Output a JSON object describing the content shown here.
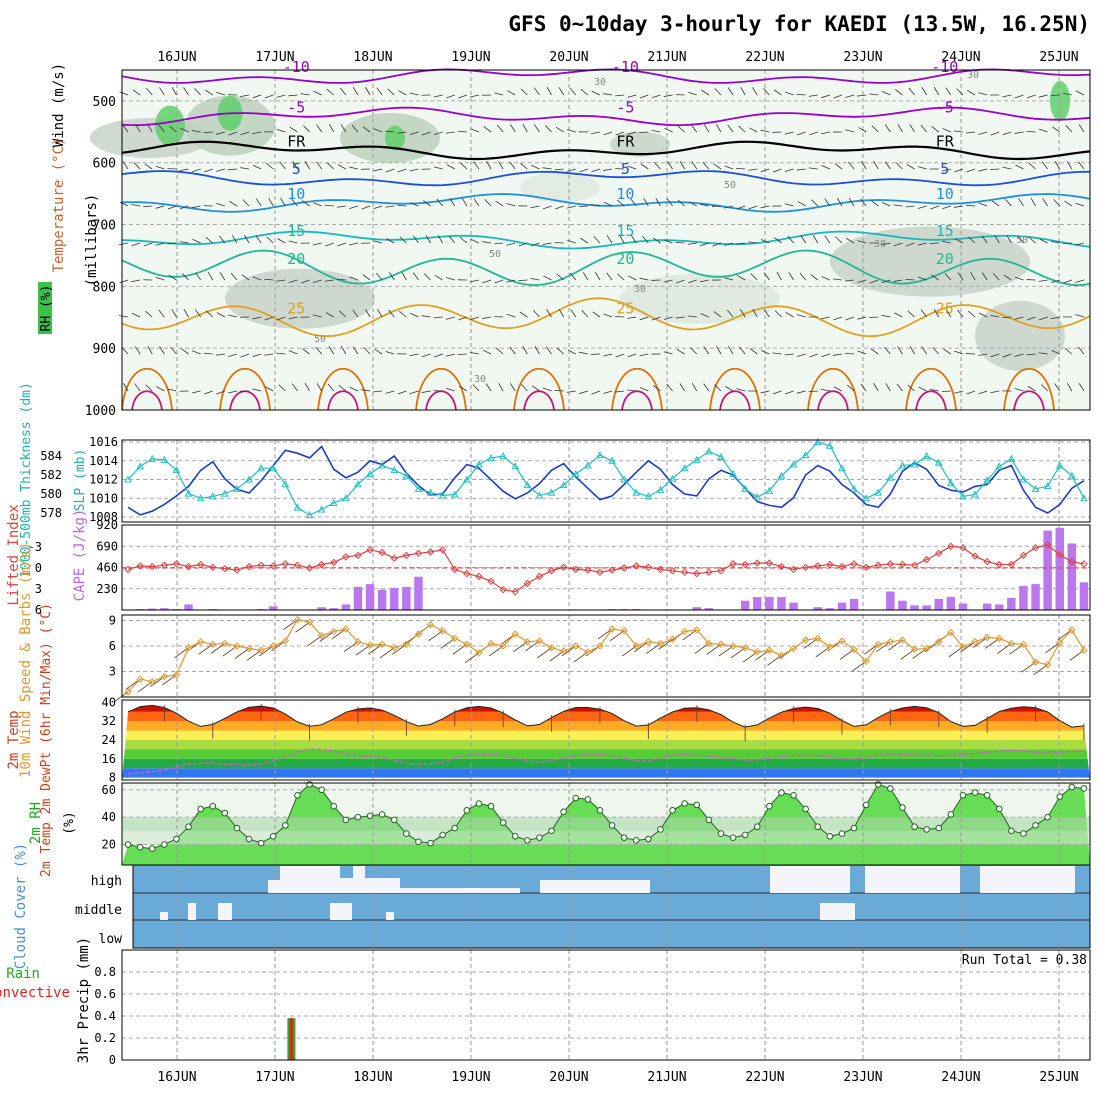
{
  "chart_data": {
    "type": "meteogram",
    "title": "GFS 0~10day 3-hourly for KAEDI (13.5W, 16.25N)",
    "date_labels": [
      "16JUN",
      "17JUN",
      "18JUN",
      "19JUN",
      "20JUN",
      "21JUN",
      "22JUN",
      "23JUN",
      "24JUN",
      "25JUN"
    ],
    "panels": [
      {
        "id": "upper-air",
        "type": "contour",
        "ylabel": "(millibars)",
        "side_labels": [
          "Wind (m/s)",
          "Temperature (°C)",
          "RH (%)"
        ],
        "y_ticks": [
          "500",
          "600",
          "700",
          "800",
          "900",
          "1000"
        ],
        "ylim": [
          1000,
          450
        ],
        "temperature_contours": [
          {
            "label": "-10",
            "pressure": 460,
            "color": "#9900cc"
          },
          {
            "label": "-5",
            "pressure": 525,
            "color": "#9900cc"
          },
          {
            "label": "FR",
            "pressure": 580,
            "color": "#000000"
          },
          {
            "label": "5",
            "pressure": 625,
            "color": "#1a4fd6"
          },
          {
            "label": "10",
            "pressure": 665,
            "color": "#1e90e0"
          },
          {
            "label": "15",
            "pressure": 725,
            "color": "#1ab8b8"
          },
          {
            "label": "20",
            "pressure": 770,
            "color": "#20b890"
          },
          {
            "label": "25",
            "pressure": 850,
            "color": "#e0a020"
          }
        ],
        "rh_contour_labels": [
          "30",
          "50"
        ]
      },
      {
        "id": "slp-thickness",
        "type": "line",
        "ylabel_left": "1000-500mb Thickness (dm)",
        "ylabel_right": "SLP (mb)",
        "left_ticks": [
          "584",
          "582",
          "580",
          "578"
        ],
        "right_ticks": [
          "1016",
          "1014",
          "1012",
          "1010",
          "1008"
        ],
        "series": [
          {
            "name": "Thickness",
            "color": "#1a3ccc",
            "values": [
              578.6,
              577.8,
              578.2,
              578.9,
              579.8,
              580.8,
              582.5,
              583.4,
              581.6,
              580.5,
              580.1,
              581.4,
              583.0,
              584.6,
              584.3,
              583.8,
              585.0,
              582.6,
              581.7,
              582.3,
              583.5,
              583.1,
              584.0,
              582.2,
              580.9,
              579.9,
              580.0,
              581.7,
              583.1,
              582.7,
              581.5,
              580.3,
              579.5,
              580.1,
              581.1,
              582.5,
              583.2,
              581.8,
              580.6,
              579.4,
              579.8,
              581.0,
              582.3,
              583.5,
              582.6,
              581.0,
              580.0,
              579.8,
              581.6,
              582.5,
              582.0,
              580.6,
              579.2,
              578.8,
              578.6,
              579.6,
              582.0,
              583.0,
              582.4,
              581.0,
              580.1,
              578.9,
              578.6,
              580.0,
              582.4,
              583.3,
              582.6,
              580.9,
              580.4,
              580.2,
              580.8,
              581.0,
              582.5,
              583.0,
              580.4,
              578.6,
              578.0,
              578.9,
              580.6,
              581.4
            ]
          },
          {
            "name": "SLP",
            "color": "#20c0c0",
            "values": [
              1012.0,
              1013.4,
              1014.2,
              1014.1,
              1013.0,
              1010.5,
              1010.0,
              1010.2,
              1010.5,
              1011.0,
              1012.0,
              1013.2,
              1013.2,
              1011.5,
              1009.0,
              1008.2,
              1008.8,
              1009.5,
              1010.0,
              1011.5,
              1012.6,
              1013.5,
              1013.0,
              1012.4,
              1011.0,
              1010.6,
              1010.3,
              1010.4,
              1012.0,
              1013.6,
              1014.3,
              1014.5,
              1013.4,
              1011.4,
              1010.3,
              1010.6,
              1011.4,
              1012.6,
              1013.5,
              1014.6,
              1014.0,
              1012.0,
              1010.6,
              1010.2,
              1010.9,
              1012.1,
              1013.2,
              1014.1,
              1015.0,
              1014.4,
              1012.6,
              1011.0,
              1010.1,
              1010.8,
              1012.4,
              1013.6,
              1014.6,
              1016.0,
              1015.6,
              1013.2,
              1011.0,
              1010.0,
              1010.6,
              1012.2,
              1013.5,
              1013.6,
              1014.5,
              1013.8,
              1011.6,
              1010.2,
              1010.4,
              1011.9,
              1013.4,
              1014.2,
              1012.0,
              1011.0,
              1011.3,
              1013.5,
              1012.4,
              1010.0
            ]
          }
        ]
      },
      {
        "id": "li-cape",
        "type": "line+bar",
        "ylabel_left": "Lifted Index",
        "ylabel_right": "CAPE (J/kg)",
        "left_ticks": [
          "-3",
          "0",
          "3",
          "6"
        ],
        "right_ticks": [
          "920",
          "690",
          "460",
          "230"
        ],
        "series": [
          {
            "name": "Lifted Index",
            "color": "#e04040",
            "values": [
              0.2,
              -0.3,
              -0.2,
              -0.4,
              -0.6,
              -0.2,
              -0.5,
              -0.1,
              0.1,
              0.3,
              -0.2,
              -0.4,
              -0.3,
              -0.6,
              -0.4,
              0.0,
              -0.5,
              -0.8,
              -1.6,
              -1.8,
              -2.6,
              -2.2,
              -1.4,
              -1.8,
              -2.1,
              -2.3,
              -2.6,
              0.2,
              0.8,
              1.2,
              1.9,
              3.1,
              3.4,
              2.2,
              1.2,
              0.4,
              -0.1,
              0.2,
              0.3,
              0.6,
              0.3,
              0.0,
              -0.3,
              -0.1,
              0.2,
              0.4,
              0.6,
              0.8,
              0.6,
              0.4,
              -0.6,
              -0.5,
              -0.7,
              -0.7,
              -0.2,
              0.2,
              -0.1,
              -0.3,
              -0.5,
              -0.2,
              -0.6,
              -0.1,
              -0.4,
              -0.6,
              -0.5,
              -0.4,
              -1.2,
              -2.1,
              -3.1,
              -2.9,
              -1.7,
              -0.9,
              -0.5,
              -0.5,
              -1.8,
              -2.9,
              -3.3,
              -1.9,
              -0.9,
              -0.6
            ]
          },
          {
            "name": "CAPE",
            "color": "#bb77ee",
            "values": [
              5,
              10,
              15,
              20,
              10,
              60,
              0,
              10,
              0,
              0,
              0,
              10,
              40,
              0,
              0,
              0,
              30,
              20,
              60,
              250,
              280,
              220,
              240,
              250,
              360,
              0,
              0,
              0,
              0,
              0,
              0,
              0,
              0,
              0,
              0,
              0,
              0,
              0,
              0,
              0,
              10,
              10,
              10,
              0,
              0,
              0,
              0,
              30,
              20,
              0,
              0,
              100,
              140,
              140,
              140,
              80,
              0,
              30,
              20,
              80,
              120,
              0,
              0,
              200,
              100,
              50,
              50,
              120,
              140,
              70,
              0,
              70,
              60,
              130,
              260,
              280,
              860,
              890,
              720,
              300
            ]
          }
        ]
      },
      {
        "id": "wind10m",
        "type": "line",
        "ylabel": "10m Wind Speed & Barbs (m/s)",
        "left_ticks": [
          "9",
          "6",
          "3"
        ],
        "series": [
          {
            "name": "Speed",
            "color": "#e09a30",
            "values": [
              0.6,
              2.1,
              1.8,
              2.4,
              2.6,
              5.8,
              6.5,
              6.2,
              6.3,
              6.0,
              5.7,
              5.5,
              6.0,
              6.6,
              9.1,
              8.8,
              7.2,
              7.7,
              8.0,
              6.5,
              6.1,
              6.2,
              5.8,
              6.2,
              7.4,
              8.5,
              7.8,
              6.9,
              6.2,
              5.2,
              6.3,
              6.0,
              7.4,
              6.5,
              6.6,
              5.8,
              5.4,
              6.0,
              5.3,
              6.0,
              8.0,
              7.8,
              6.0,
              6.5,
              6.3,
              6.8,
              7.7,
              7.9,
              6.3,
              6.2,
              6.0,
              5.8,
              5.3,
              5.5,
              4.9,
              5.7,
              6.7,
              6.9,
              5.9,
              6.6,
              5.6,
              4.2,
              6.2,
              6.5,
              6.7,
              5.6,
              5.7,
              6.5,
              7.6,
              5.9,
              6.5,
              7.0,
              6.9,
              6.3,
              6.2,
              4.1,
              3.8,
              6.4,
              7.9,
              5.5
            ]
          }
        ]
      },
      {
        "id": "temp2m",
        "type": "area",
        "ylabel": "2m Temp 2m DewPt (6hr Min/Max) (°C)",
        "left_ticks": [
          "40",
          "32",
          "24",
          "16",
          "8"
        ],
        "series": [
          {
            "name": "2m Temp",
            "color": "#c00000",
            "values": [
              36.0,
              38.2,
              38.7,
              37.8,
              35.4,
              32.0,
              29.8,
              30.6,
              33.2,
              35.9,
              37.9,
              38.4,
              37.6,
              35.0,
              31.7,
              29.8,
              30.5,
              33.0,
              35.8,
              37.2,
              37.6,
              36.7,
              34.5,
              31.8,
              29.9,
              30.6,
              33.0,
              35.9,
              37.7,
              38.3,
              37.6,
              35.5,
              32.5,
              30.0,
              30.6,
              33.5,
              36.2,
              37.8,
              37.8,
              37.1,
              35.3,
              32.2,
              29.9,
              30.4,
              33.3,
              35.9,
              37.5,
              37.7,
              36.8,
              34.8,
              31.6,
              29.5,
              30.4,
              33.3,
              35.8,
              37.4,
              38.0,
              37.4,
              35.4,
              32.3,
              29.8,
              30.4,
              33.6,
              36.2,
              37.6,
              38.3,
              37.7,
              35.6,
              31.8,
              29.8,
              30.2,
              33.1,
              36.1,
              37.5,
              38.1,
              37.7,
              35.9,
              32.2,
              29.5,
              30.0
            ]
          },
          {
            "name": "2m DewPt",
            "color": "#d060d0",
            "values": [
              9.5,
              10.0,
              10.5,
              11.3,
              12.5,
              13.8,
              14.1,
              14.3,
              13.7,
              13.6,
              13.4,
              13.8,
              15.1,
              16.8,
              18.8,
              20.2,
              19.9,
              19.3,
              18.0,
              17.2,
              17.0,
              16.5,
              15.3,
              14.2,
              13.8,
              14.0,
              14.4,
              16.4,
              17.6,
              17.8,
              17.9,
              17.4,
              16.3,
              15.1,
              14.6,
              15.2,
              16.3,
              17.3,
              18.0,
              17.9,
              17.3,
              16.2,
              15.2,
              15.0,
              16.4,
              17.5,
              17.9,
              17.5,
              17.2,
              16.8,
              16.0,
              15.4,
              15.6,
              16.3,
              17.0,
              17.4,
              17.4,
              17.4,
              16.9,
              16.1,
              15.9,
              16.5,
              17.5,
              18.0,
              18.0,
              17.6,
              17.6,
              17.3,
              17.6,
              17.9,
              18.3,
              18.7,
              19.3,
              19.6,
              19.5,
              18.6,
              18.4,
              18.8,
              19.2,
              19.4
            ]
          }
        ]
      },
      {
        "id": "rh2m",
        "type": "area",
        "ylabel": "2m RH (%)",
        "left_ticks": [
          "60",
          "40",
          "20"
        ],
        "series": [
          {
            "name": "2m RH",
            "color": "#20c040",
            "values": [
              20,
              18,
              17,
              20,
              24,
              33,
              46,
              48,
              43,
              32,
              24,
              21,
              26,
              34,
              56,
              64,
              60,
              48,
              38,
              40,
              41,
              42,
              38,
              28,
              22,
              21,
              27,
              32,
              45,
              50,
              48,
              36,
              26,
              23,
              25,
              30,
              44,
              54,
              53,
              45,
              34,
              25,
              23,
              24,
              31,
              45,
              50,
              49,
              38,
              28,
              25,
              27,
              33,
              48,
              58,
              56,
              46,
              33,
              26,
              28,
              32,
              49,
              64,
              61,
              47,
              33,
              31,
              32,
              42,
              56,
              58,
              56,
              46,
              30,
              28,
              34,
              40,
              55,
              62,
              61
            ]
          }
        ]
      },
      {
        "id": "cloud",
        "type": "heatmap",
        "ylabel": "Cloud Cover (%)",
        "levels": [
          "high",
          "middle",
          "low"
        ],
        "colors": {
          "clear": "#6aaad8",
          "cloudy": "#f4f4fc"
        }
      },
      {
        "id": "precip",
        "type": "bar",
        "ylabel": "3hr Precip (mm)",
        "side_labels": [
          "Total / Rain",
          "Convective"
        ],
        "left_ticks": [
          "0.8",
          "0.6",
          "0.4",
          "0.2",
          "0"
        ],
        "annotation": "Run Total = 0.38",
        "series": [
          {
            "name": "Total / Rain",
            "color": "#22aa22",
            "values": [
              {
                "x": 13.5,
                "y": 0.38
              }
            ]
          },
          {
            "name": "Convective",
            "color": "#dd2222",
            "values": [
              {
                "x": 13.5,
                "y": 0.38
              }
            ]
          }
        ]
      }
    ]
  }
}
